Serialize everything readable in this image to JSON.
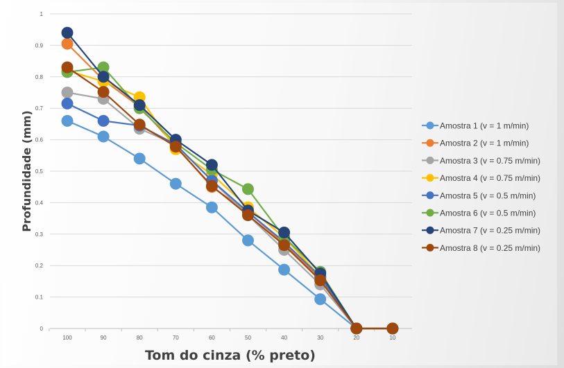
{
  "chart_data": {
    "type": "line",
    "title": "",
    "xlabel": "Tom do cinza (% preto)",
    "ylabel": "Profundidade (mm)",
    "ylim": [
      0,
      1
    ],
    "y_ticks": [
      "0",
      "0.1",
      "0.2",
      "0.3",
      "0.4",
      "0.5",
      "0.6",
      "0.7",
      "0.8",
      "0.9",
      "1"
    ],
    "grid": true,
    "legend_position": "right",
    "categories": [
      "100",
      "90",
      "80",
      "70",
      "60",
      "50",
      "40",
      "30",
      "20",
      "10"
    ],
    "series": [
      {
        "name": "Amostra 1 (v = 1 m/min)",
        "color": "#5b9bd5",
        "values": [
          0.66,
          0.61,
          0.54,
          0.46,
          0.385,
          0.28,
          0.187,
          0.093,
          0,
          0
        ]
      },
      {
        "name": "Amostra 2 (v = 1 m/min)",
        "color": "#ed7d31",
        "values": [
          0.905,
          0.79,
          0.705,
          0.58,
          0.45,
          0.37,
          0.27,
          0.16,
          0,
          0
        ]
      },
      {
        "name": "Amostra 3 (v = 0.75 m/min)",
        "color": "#a5a5a5",
        "values": [
          0.75,
          0.73,
          0.635,
          0.585,
          0.47,
          0.36,
          0.25,
          0.14,
          0,
          0
        ]
      },
      {
        "name": "Amostra 4 (v = 0.75 m/min)",
        "color": "#ffc000",
        "values": [
          0.82,
          0.785,
          0.735,
          0.57,
          0.49,
          0.385,
          0.29,
          0.165,
          0,
          0
        ]
      },
      {
        "name": "Amostra 5 (v = 0.5 m/min)",
        "color": "#4472c4",
        "values": [
          0.715,
          0.66,
          0.645,
          0.585,
          0.47,
          0.37,
          0.275,
          0.165,
          0,
          0
        ]
      },
      {
        "name": "Amostra 6 (v = 0.5 m/min)",
        "color": "#70ad47",
        "values": [
          0.815,
          0.83,
          0.7,
          0.59,
          0.505,
          0.443,
          0.29,
          0.18,
          0,
          0
        ]
      },
      {
        "name": "Amostra 7 (v = 0.25 m/min)",
        "color": "#264478",
        "values": [
          0.94,
          0.8,
          0.71,
          0.6,
          0.52,
          0.375,
          0.305,
          0.175,
          0,
          0
        ]
      },
      {
        "name": "Amostra 8 (v = 0.25 m/min)",
        "color": "#9e480e",
        "values": [
          0.83,
          0.752,
          0.648,
          0.578,
          0.453,
          0.36,
          0.265,
          0.153,
          0,
          0
        ]
      }
    ]
  }
}
